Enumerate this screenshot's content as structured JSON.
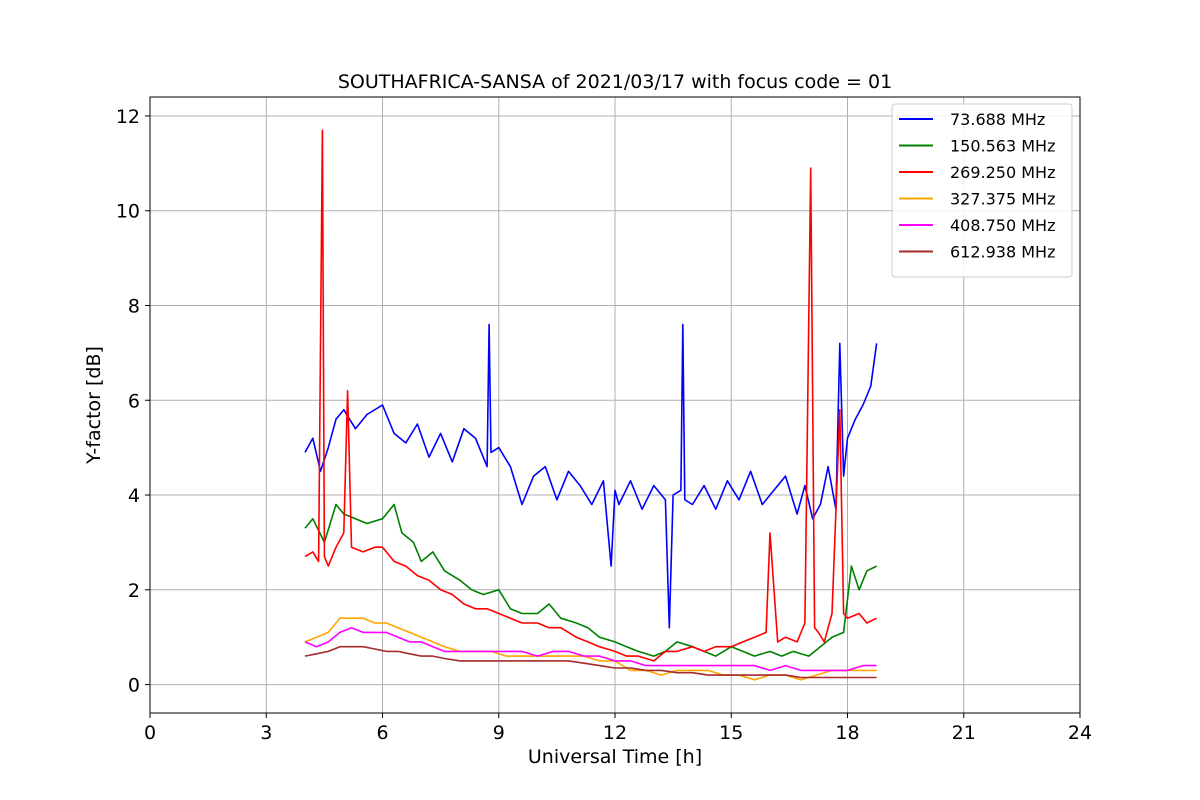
{
  "chart_data": {
    "type": "line",
    "title": "SOUTHAFRICA-SANSA of 2021/03/17 with focus code = 01",
    "xlabel": "Universal Time [h]",
    "ylabel": "Y-factor [dB]",
    "xlim": [
      0,
      24
    ],
    "ylim": [
      -0.6,
      12.4
    ],
    "xticks": [
      0,
      3,
      6,
      9,
      12,
      15,
      18,
      21,
      24
    ],
    "yticks": [
      0,
      2,
      4,
      6,
      8,
      10,
      12
    ],
    "grid": true,
    "legend_position": "top-right",
    "series": [
      {
        "name": " 73.688 MHz",
        "color": "#0000ff",
        "x": [
          4.0,
          4.2,
          4.4,
          4.6,
          4.8,
          5.0,
          5.3,
          5.6,
          6.0,
          6.3,
          6.6,
          6.9,
          7.2,
          7.5,
          7.8,
          8.1,
          8.4,
          8.7,
          8.75,
          8.8,
          9.0,
          9.3,
          9.6,
          9.9,
          10.2,
          10.5,
          10.8,
          11.1,
          11.4,
          11.7,
          11.9,
          12.0,
          12.1,
          12.4,
          12.7,
          13.0,
          13.3,
          13.4,
          13.5,
          13.7,
          13.75,
          13.8,
          14.0,
          14.3,
          14.6,
          14.9,
          15.2,
          15.5,
          15.8,
          16.1,
          16.4,
          16.7,
          16.9,
          17.1,
          17.3,
          17.5,
          17.7,
          17.8,
          17.9,
          18.0,
          18.2,
          18.4,
          18.6,
          18.75
        ],
        "y": [
          4.9,
          5.2,
          4.5,
          5.0,
          5.6,
          5.8,
          5.4,
          5.7,
          5.9,
          5.3,
          5.1,
          5.5,
          4.8,
          5.3,
          4.7,
          5.4,
          5.2,
          4.6,
          7.6,
          4.9,
          5.0,
          4.6,
          3.8,
          4.4,
          4.6,
          3.9,
          4.5,
          4.2,
          3.8,
          4.3,
          2.5,
          4.1,
          3.8,
          4.3,
          3.7,
          4.2,
          3.9,
          1.2,
          4.0,
          4.1,
          7.6,
          3.9,
          3.8,
          4.2,
          3.7,
          4.3,
          3.9,
          4.5,
          3.8,
          4.1,
          4.4,
          3.6,
          4.2,
          3.5,
          3.8,
          4.6,
          3.7,
          7.2,
          4.4,
          5.2,
          5.6,
          5.9,
          6.3,
          7.2
        ]
      },
      {
        "name": "150.563 MHz",
        "color": "#008000",
        "x": [
          4.0,
          4.2,
          4.5,
          4.8,
          5.0,
          5.3,
          5.6,
          6.0,
          6.3,
          6.5,
          6.8,
          7.0,
          7.3,
          7.6,
          8.0,
          8.3,
          8.6,
          9.0,
          9.3,
          9.6,
          10.0,
          10.3,
          10.6,
          11.0,
          11.3,
          11.6,
          12.0,
          12.3,
          12.6,
          13.0,
          13.3,
          13.6,
          14.0,
          14.3,
          14.6,
          15.0,
          15.3,
          15.6,
          16.0,
          16.3,
          16.6,
          17.0,
          17.3,
          17.6,
          17.9,
          18.1,
          18.3,
          18.5,
          18.75
        ],
        "y": [
          3.3,
          3.5,
          3.0,
          3.8,
          3.6,
          3.5,
          3.4,
          3.5,
          3.8,
          3.2,
          3.0,
          2.6,
          2.8,
          2.4,
          2.2,
          2.0,
          1.9,
          2.0,
          1.6,
          1.5,
          1.5,
          1.7,
          1.4,
          1.3,
          1.2,
          1.0,
          0.9,
          0.8,
          0.7,
          0.6,
          0.7,
          0.9,
          0.8,
          0.7,
          0.6,
          0.8,
          0.7,
          0.6,
          0.7,
          0.6,
          0.7,
          0.6,
          0.8,
          1.0,
          1.1,
          2.5,
          2.0,
          2.4,
          2.5
        ]
      },
      {
        "name": "269.250 MHz",
        "color": "#ff0000",
        "x": [
          4.0,
          4.2,
          4.35,
          4.45,
          4.5,
          4.6,
          4.8,
          5.0,
          5.1,
          5.2,
          5.5,
          5.8,
          6.0,
          6.3,
          6.6,
          6.9,
          7.2,
          7.5,
          7.8,
          8.1,
          8.4,
          8.7,
          9.0,
          9.3,
          9.6,
          10.0,
          10.3,
          10.6,
          11.0,
          11.3,
          11.6,
          12.0,
          12.3,
          12.6,
          13.0,
          13.3,
          13.6,
          14.0,
          14.3,
          14.6,
          15.0,
          15.3,
          15.6,
          15.9,
          16.0,
          16.2,
          16.4,
          16.7,
          16.9,
          17.05,
          17.15,
          17.25,
          17.4,
          17.6,
          17.8,
          17.9,
          18.0,
          18.3,
          18.5,
          18.75
        ],
        "y": [
          2.7,
          2.8,
          2.6,
          11.7,
          2.7,
          2.5,
          2.9,
          3.2,
          6.2,
          2.9,
          2.8,
          2.9,
          2.9,
          2.6,
          2.5,
          2.3,
          2.2,
          2.0,
          1.9,
          1.7,
          1.6,
          1.6,
          1.5,
          1.4,
          1.3,
          1.3,
          1.2,
          1.2,
          1.0,
          0.9,
          0.8,
          0.7,
          0.6,
          0.6,
          0.5,
          0.7,
          0.7,
          0.8,
          0.7,
          0.8,
          0.8,
          0.9,
          1.0,
          1.1,
          3.2,
          0.9,
          1.0,
          0.9,
          1.3,
          10.9,
          1.2,
          1.1,
          0.9,
          1.5,
          5.8,
          1.5,
          1.4,
          1.5,
          1.3,
          1.4
        ]
      },
      {
        "name": "327.375 MHz",
        "color": "#ffa500",
        "x": [
          4.0,
          4.3,
          4.6,
          4.9,
          5.2,
          5.5,
          5.8,
          6.1,
          6.4,
          6.7,
          7.0,
          7.3,
          7.6,
          8.0,
          8.4,
          8.8,
          9.2,
          9.6,
          10.0,
          10.4,
          10.8,
          11.2,
          11.6,
          12.0,
          12.4,
          12.8,
          13.2,
          13.6,
          14.0,
          14.4,
          14.8,
          15.2,
          15.6,
          16.0,
          16.4,
          16.8,
          17.2,
          17.6,
          18.0,
          18.4,
          18.75
        ],
        "y": [
          0.9,
          1.0,
          1.1,
          1.4,
          1.4,
          1.4,
          1.3,
          1.3,
          1.2,
          1.1,
          1.0,
          0.9,
          0.8,
          0.7,
          0.7,
          0.7,
          0.6,
          0.6,
          0.6,
          0.6,
          0.6,
          0.6,
          0.5,
          0.5,
          0.3,
          0.3,
          0.2,
          0.3,
          0.3,
          0.3,
          0.2,
          0.2,
          0.1,
          0.2,
          0.2,
          0.1,
          0.2,
          0.3,
          0.3,
          0.3,
          0.3
        ]
      },
      {
        "name": "408.750 MHz",
        "color": "#ff00ff",
        "x": [
          4.0,
          4.3,
          4.6,
          4.9,
          5.2,
          5.5,
          5.8,
          6.1,
          6.4,
          6.7,
          7.0,
          7.3,
          7.6,
          8.0,
          8.4,
          8.8,
          9.2,
          9.6,
          10.0,
          10.4,
          10.8,
          11.2,
          11.6,
          12.0,
          12.4,
          12.8,
          13.2,
          13.6,
          14.0,
          14.4,
          14.8,
          15.2,
          15.6,
          16.0,
          16.4,
          16.8,
          17.2,
          17.6,
          18.0,
          18.4,
          18.75
        ],
        "y": [
          0.9,
          0.8,
          0.9,
          1.1,
          1.2,
          1.1,
          1.1,
          1.1,
          1.0,
          0.9,
          0.9,
          0.8,
          0.7,
          0.7,
          0.7,
          0.7,
          0.7,
          0.7,
          0.6,
          0.7,
          0.7,
          0.6,
          0.6,
          0.5,
          0.5,
          0.4,
          0.4,
          0.4,
          0.4,
          0.4,
          0.4,
          0.4,
          0.4,
          0.3,
          0.4,
          0.3,
          0.3,
          0.3,
          0.3,
          0.4,
          0.4
        ]
      },
      {
        "name": "612.938 MHz",
        "color": "#a52a2a",
        "x": [
          4.0,
          4.3,
          4.6,
          4.9,
          5.2,
          5.5,
          5.8,
          6.1,
          6.4,
          6.7,
          7.0,
          7.3,
          7.6,
          8.0,
          8.4,
          8.8,
          9.2,
          9.6,
          10.0,
          10.4,
          10.8,
          11.2,
          11.6,
          12.0,
          12.4,
          12.8,
          13.2,
          13.6,
          14.0,
          14.4,
          14.8,
          15.2,
          15.6,
          16.0,
          16.4,
          16.8,
          17.2,
          17.6,
          18.0,
          18.4,
          18.75
        ],
        "y": [
          0.6,
          0.65,
          0.7,
          0.8,
          0.8,
          0.8,
          0.75,
          0.7,
          0.7,
          0.65,
          0.6,
          0.6,
          0.55,
          0.5,
          0.5,
          0.5,
          0.5,
          0.5,
          0.5,
          0.5,
          0.5,
          0.45,
          0.4,
          0.35,
          0.35,
          0.3,
          0.3,
          0.25,
          0.25,
          0.2,
          0.2,
          0.2,
          0.2,
          0.2,
          0.2,
          0.15,
          0.15,
          0.15,
          0.15,
          0.15,
          0.15
        ]
      }
    ]
  }
}
